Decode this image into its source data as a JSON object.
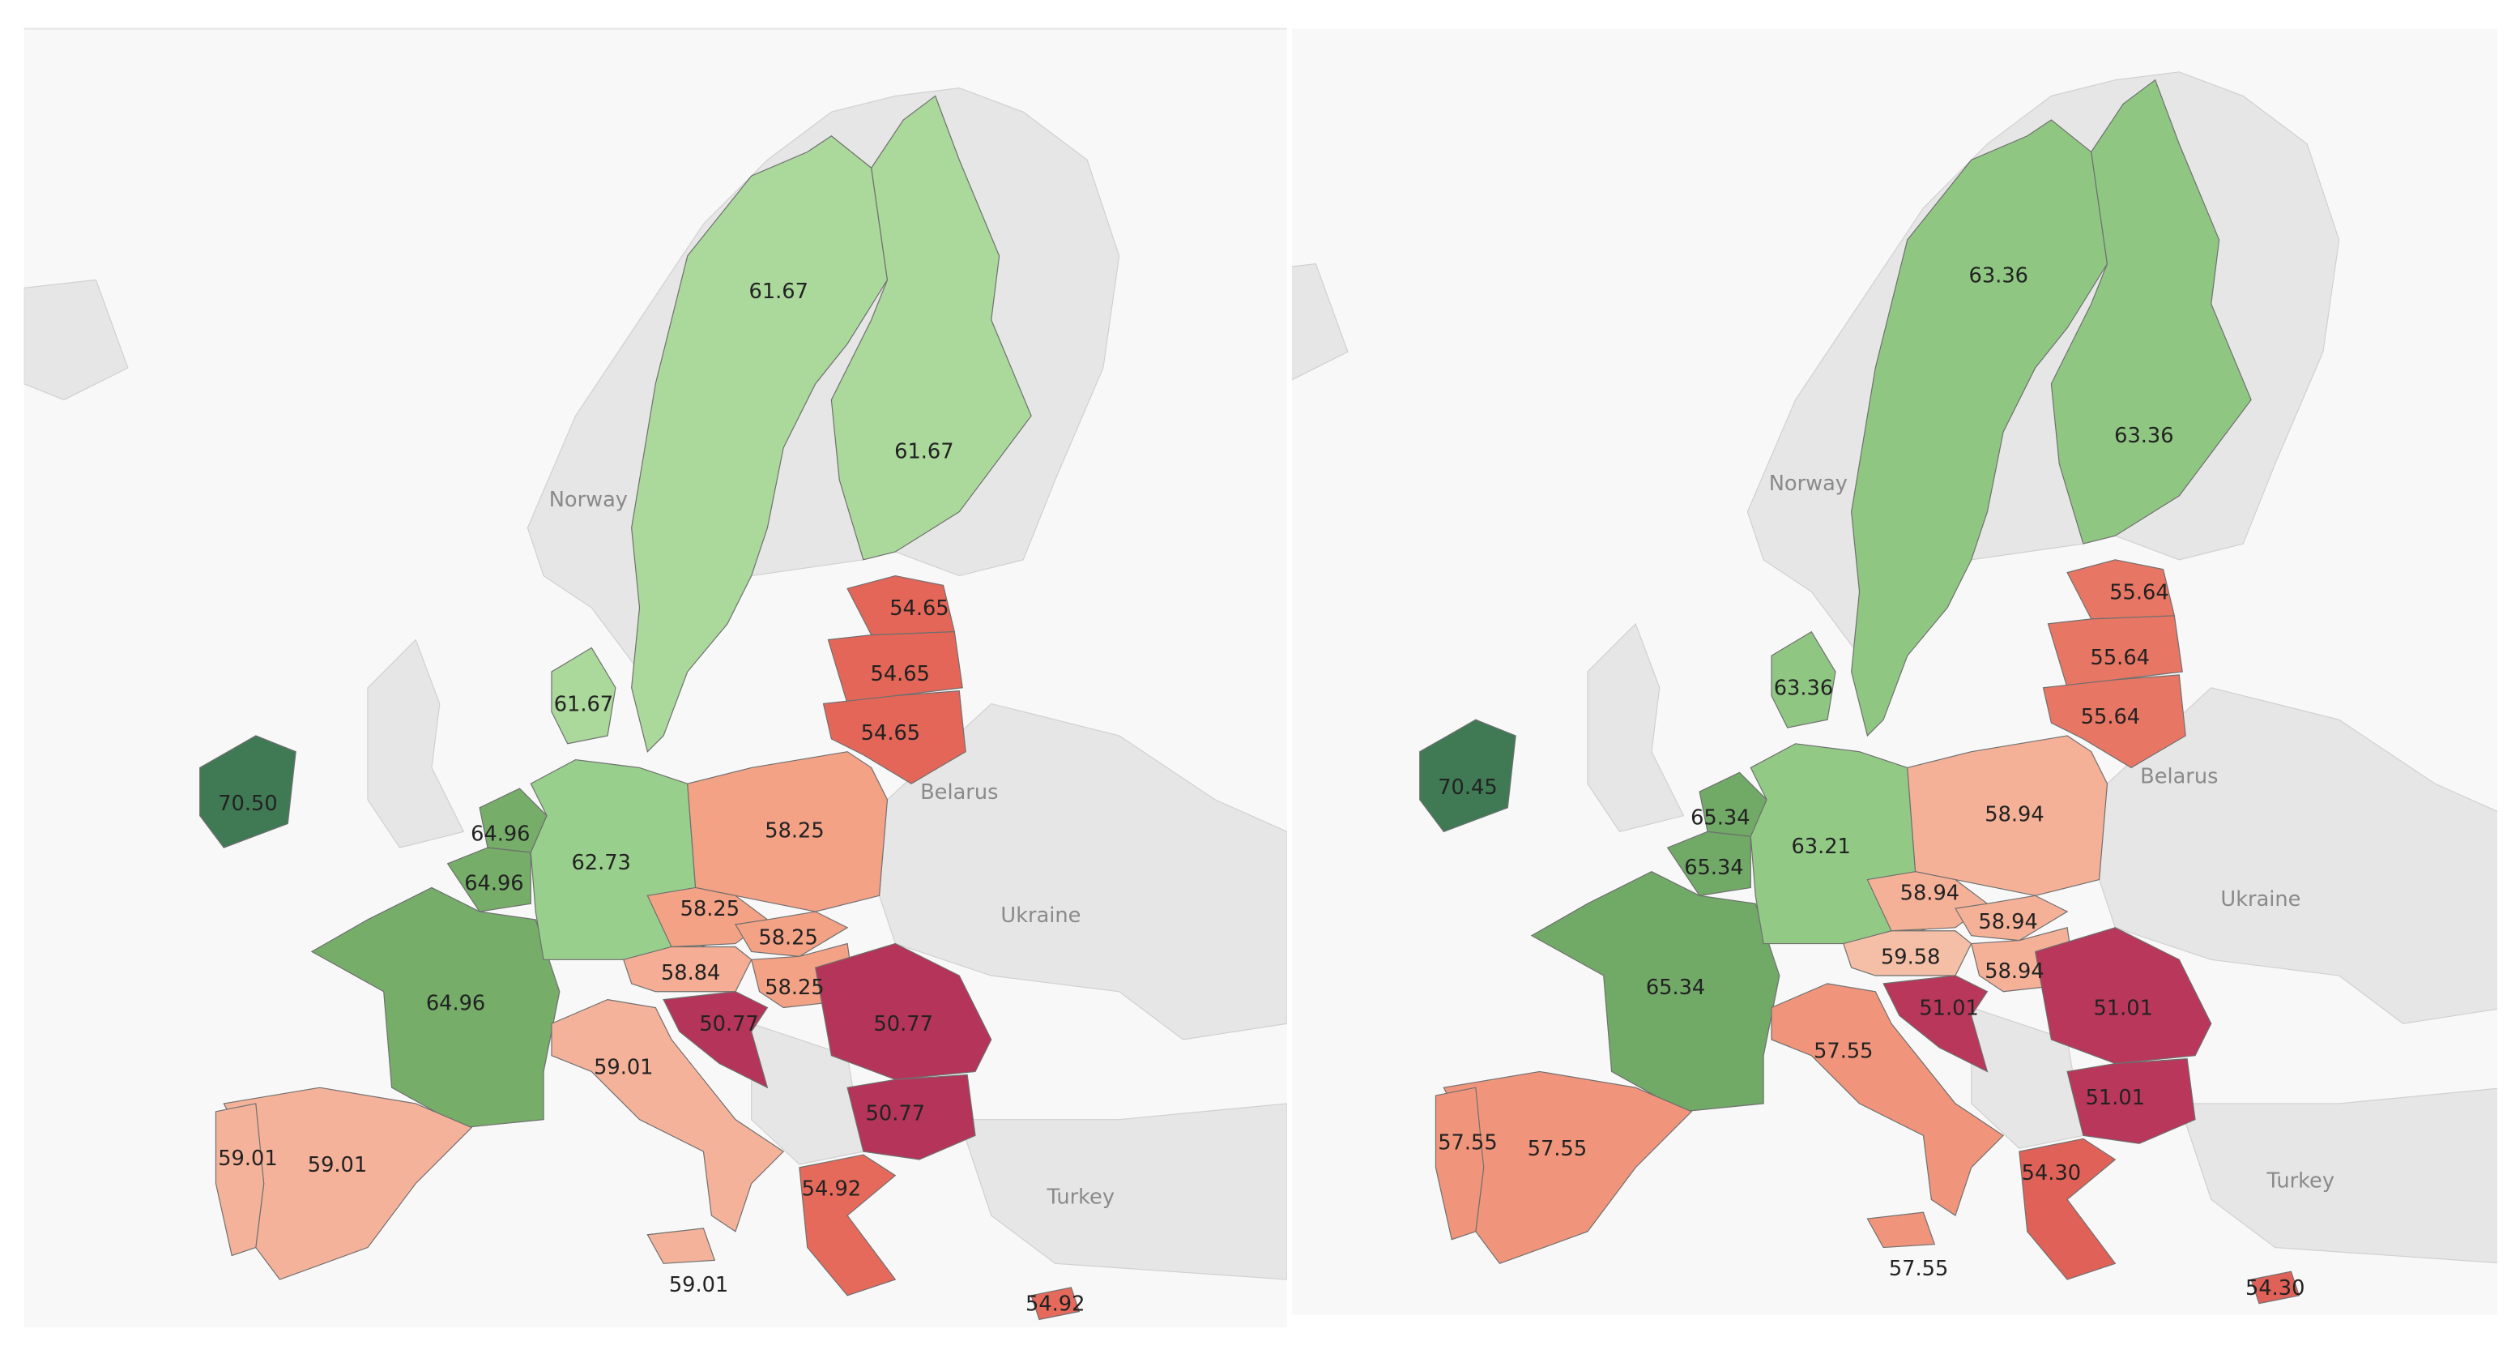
{
  "maps": [
    {
      "places": [
        "Norway",
        "Belarus",
        "Ukraine",
        "Turkey"
      ],
      "regions": [
        "61.67",
        "61.67",
        "61.67",
        "54.65",
        "54.65",
        "54.65",
        "70.50",
        "64.96",
        "64.96",
        "64.96",
        "62.73",
        "58.25",
        "58.25",
        "58.25",
        "58.25",
        "58.84",
        "50.77",
        "50.77",
        "50.77",
        "59.01",
        "59.01",
        "59.01",
        "59.01",
        "54.92",
        "54.92"
      ]
    },
    {
      "places": [
        "Norway",
        "Belarus",
        "Ukraine",
        "Turkey"
      ],
      "regions": [
        "63.36",
        "63.36",
        "63.36",
        "55.64",
        "55.64",
        "55.64",
        "70.45",
        "65.34",
        "65.34",
        "65.34",
        "63.21",
        "58.94",
        "58.94",
        "58.94",
        "58.94",
        "59.58",
        "51.01",
        "51.01",
        "51.01",
        "57.55",
        "57.55",
        "57.55",
        "57.55",
        "54.30",
        "54.30"
      ]
    }
  ]
}
